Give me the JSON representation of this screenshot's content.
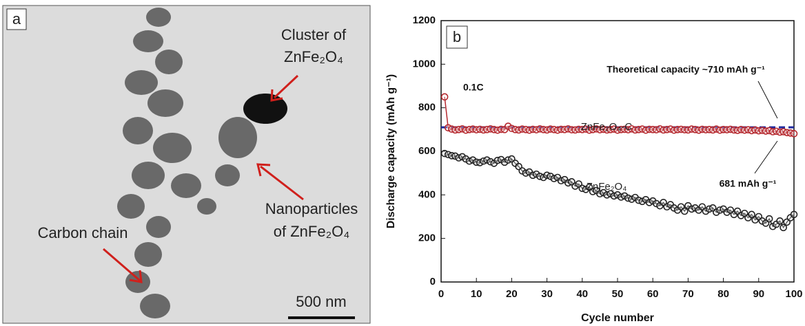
{
  "panel_a": {
    "label": "a",
    "annotations": [
      "Cluster of",
      "ZnFe₂O₄",
      "Nanoparticles",
      "of ZnFe₂O₄",
      "Carbon chain"
    ],
    "scale_bar": "500 nm"
  },
  "chart_data": {
    "type": "line",
    "panel_label": "b",
    "xlabel": "Cycle number",
    "ylabel": "Discharge capacity (mAh g⁻¹)",
    "xlim": [
      0,
      100
    ],
    "ylim": [
      0,
      1200
    ],
    "xticks": [
      0,
      10,
      20,
      30,
      40,
      50,
      60,
      70,
      80,
      90,
      100
    ],
    "yticks": [
      0,
      200,
      400,
      600,
      800,
      1000,
      1200
    ],
    "x": [
      1,
      2,
      3,
      4,
      5,
      6,
      7,
      8,
      9,
      10,
      11,
      12,
      13,
      14,
      15,
      16,
      17,
      18,
      19,
      20,
      21,
      22,
      23,
      24,
      25,
      26,
      27,
      28,
      29,
      30,
      31,
      32,
      33,
      34,
      35,
      36,
      37,
      38,
      39,
      40,
      41,
      42,
      43,
      44,
      45,
      46,
      47,
      48,
      49,
      50,
      51,
      52,
      53,
      54,
      55,
      56,
      57,
      58,
      59,
      60,
      61,
      62,
      63,
      64,
      65,
      66,
      67,
      68,
      69,
      70,
      71,
      72,
      73,
      74,
      75,
      76,
      77,
      78,
      79,
      80,
      81,
      82,
      83,
      84,
      85,
      86,
      87,
      88,
      89,
      90,
      91,
      92,
      93,
      94,
      95,
      96,
      97,
      98,
      99,
      100
    ],
    "series": [
      {
        "name": "ZnFe₂O₄-C",
        "color": "#b5282e",
        "values": [
          850,
          708,
          702,
          698,
          700,
          703,
          697,
          700,
          702,
          699,
          701,
          698,
          700,
          703,
          700,
          697,
          701,
          700,
          715,
          705,
          700,
          698,
          702,
          700,
          697,
          701,
          699,
          703,
          700,
          698,
          702,
          700,
          697,
          701,
          700,
          703,
          699,
          698,
          701,
          700,
          702,
          697,
          700,
          703,
          699,
          701,
          698,
          700,
          702,
          697,
          700,
          701,
          699,
          703,
          698,
          700,
          702,
          697,
          701,
          700,
          699,
          703,
          698,
          700,
          702,
          697,
          700,
          701,
          699,
          698,
          702,
          700,
          697,
          701,
          699,
          700,
          698,
          702,
          697,
          700,
          699,
          701,
          698,
          696,
          700,
          697,
          699,
          695,
          698,
          694,
          696,
          693,
          695,
          690,
          692,
          688,
          690,
          686,
          684,
          681
        ]
      },
      {
        "name": "ZnFe₂O₄",
        "color": "#222222",
        "values": [
          590,
          585,
          580,
          578,
          570,
          575,
          565,
          555,
          560,
          550,
          548,
          555,
          560,
          552,
          545,
          558,
          562,
          550,
          560,
          565,
          545,
          530,
          510,
          500,
          505,
          490,
          495,
          485,
          480,
          490,
          485,
          475,
          480,
          465,
          470,
          455,
          460,
          440,
          450,
          430,
          425,
          435,
          415,
          420,
          405,
          410,
          400,
          405,
          395,
          400,
          390,
          395,
          385,
          380,
          388,
          375,
          370,
          378,
          365,
          372,
          360,
          350,
          365,
          345,
          355,
          340,
          330,
          345,
          325,
          350,
          335,
          340,
          330,
          345,
          325,
          335,
          340,
          320,
          330,
          335,
          320,
          330,
          310,
          325,
          305,
          315,
          295,
          310,
          285,
          300,
          280,
          270,
          290,
          255,
          265,
          280,
          250,
          275,
          295,
          310
        ]
      }
    ],
    "reference_line": {
      "value": 710,
      "label": "Theoretical capacity ~710 mAh g⁻¹",
      "color": "#1f2a9e"
    },
    "annotations": [
      "0.1C",
      "681 mAh g⁻¹"
    ]
  }
}
